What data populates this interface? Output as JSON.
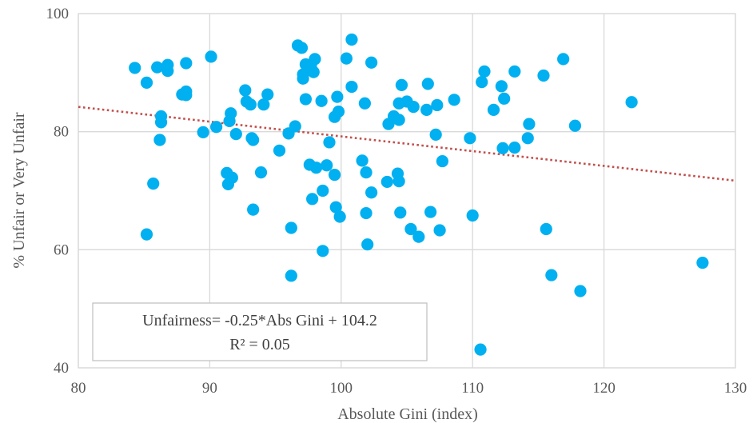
{
  "chart_data": {
    "type": "scatter",
    "xlabel": "Absolute Gini (index)",
    "ylabel": "% Unfair or Very Unfair",
    "xlim": [
      80,
      130
    ],
    "ylim": [
      40,
      100
    ],
    "x_ticks": [
      "80",
      "90",
      "100",
      "110",
      "120",
      "130"
    ],
    "y_ticks": [
      "40",
      "60",
      "80",
      "100"
    ],
    "grid": true,
    "marker_color": "#00B0F0",
    "trendline_color": "#C0504D",
    "trendline": {
      "slope": -0.25,
      "intercept": 104.2
    },
    "equation_line1": "Unfairness= -0.25*Abs Gini + 104.2",
    "equation_line2": "R² = 0.05",
    "series": [
      {
        "points": [
          [
            84.3,
            90.8
          ],
          [
            85.2,
            88.3
          ],
          [
            85.7,
            71.2
          ],
          [
            85.2,
            62.6
          ],
          [
            86,
            90.9
          ],
          [
            86.8,
            91.3
          ],
          [
            86.8,
            90.3
          ],
          [
            86.3,
            82.6
          ],
          [
            86.3,
            81.6
          ],
          [
            86.2,
            78.6
          ],
          [
            87.9,
            86.3
          ],
          [
            88.2,
            86.2
          ],
          [
            88.2,
            86.8
          ],
          [
            88.2,
            91.6
          ],
          [
            89.5,
            79.9
          ],
          [
            90.1,
            92.7
          ],
          [
            90.5,
            80.8
          ],
          [
            91.3,
            73
          ],
          [
            91.4,
            71.1
          ],
          [
            91.6,
            83.1
          ],
          [
            91.5,
            81.8
          ],
          [
            91.7,
            72.2
          ],
          [
            92,
            79.6
          ],
          [
            92.7,
            87
          ],
          [
            92.8,
            85.1
          ],
          [
            93.1,
            84.6
          ],
          [
            93.3,
            78.6
          ],
          [
            93.2,
            78.9
          ],
          [
            93.3,
            66.8
          ],
          [
            93.9,
            73.1
          ],
          [
            94.1,
            84.6
          ],
          [
            94.4,
            86.3
          ],
          [
            95.3,
            76.8
          ],
          [
            96,
            79.7
          ],
          [
            96.2,
            63.7
          ],
          [
            96.2,
            55.6
          ],
          [
            96.5,
            80.9
          ],
          [
            96.7,
            94.6
          ],
          [
            97,
            94.2
          ],
          [
            97.1,
            89
          ],
          [
            97.3,
            91.4
          ],
          [
            97.1,
            89.7
          ],
          [
            97.3,
            85.5
          ],
          [
            97.6,
            74.4
          ],
          [
            97.8,
            68.6
          ],
          [
            97.7,
            91.2
          ],
          [
            97.9,
            90.1
          ],
          [
            98,
            92.3
          ],
          [
            98.1,
            73.9
          ],
          [
            98.5,
            85.2
          ],
          [
            98.6,
            59.8
          ],
          [
            98.6,
            70
          ],
          [
            98.9,
            74.3
          ],
          [
            99.1,
            78.2
          ],
          [
            99.5,
            72.7
          ],
          [
            99.6,
            67.2
          ],
          [
            99.5,
            82.5
          ],
          [
            99.7,
            85.9
          ],
          [
            99.8,
            83.4
          ],
          [
            99.9,
            65.6
          ],
          [
            100.4,
            92.4
          ],
          [
            100.8,
            87.6
          ],
          [
            100.8,
            95.6
          ],
          [
            101.6,
            75.1
          ],
          [
            101.8,
            84.8
          ],
          [
            101.9,
            73.1
          ],
          [
            101.9,
            66.2
          ],
          [
            102,
            60.9
          ],
          [
            102.3,
            69.7
          ],
          [
            102.3,
            91.7
          ],
          [
            103.5,
            71.5
          ],
          [
            103.6,
            81.3
          ],
          [
            104,
            82.6
          ],
          [
            104.3,
            72.9
          ],
          [
            104.4,
            84.8
          ],
          [
            104.4,
            82
          ],
          [
            104.4,
            71.6
          ],
          [
            104.5,
            66.3
          ],
          [
            104.6,
            87.9
          ],
          [
            105,
            85.1
          ],
          [
            105.3,
            63.5
          ],
          [
            105.5,
            84.2
          ],
          [
            105.9,
            62.2
          ],
          [
            106.5,
            83.7
          ],
          [
            106.6,
            88.1
          ],
          [
            106.8,
            66.4
          ],
          [
            107.2,
            79.5
          ],
          [
            107.3,
            84.5
          ],
          [
            107.5,
            63.3
          ],
          [
            107.7,
            75
          ],
          [
            108.6,
            85.4
          ],
          [
            109.8,
            78.9
          ],
          [
            110,
            65.8
          ],
          [
            110.6,
            43.1
          ],
          [
            110.7,
            88.4
          ],
          [
            110.9,
            90.2
          ],
          [
            111.6,
            83.7
          ],
          [
            112.2,
            87.7
          ],
          [
            112.3,
            77.2
          ],
          [
            112.4,
            85.6
          ],
          [
            113.2,
            90.2
          ],
          [
            113.2,
            77.3
          ],
          [
            114.2,
            78.9
          ],
          [
            114.3,
            81.3
          ],
          [
            115.4,
            89.5
          ],
          [
            115.6,
            63.5
          ],
          [
            116,
            55.7
          ],
          [
            116.9,
            92.3
          ],
          [
            117.8,
            81
          ],
          [
            118.2,
            53
          ],
          [
            122.1,
            85
          ],
          [
            127.5,
            57.8
          ]
        ]
      }
    ]
  }
}
